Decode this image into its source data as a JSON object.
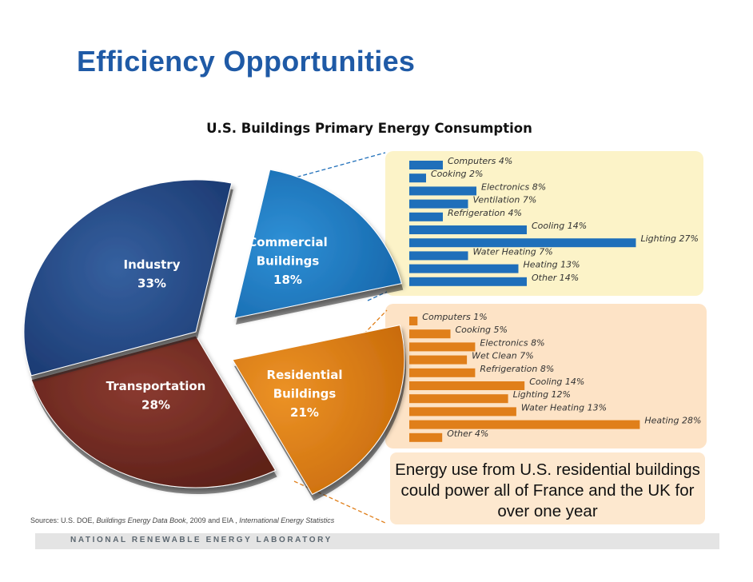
{
  "slide": {
    "title": "Efficiency Opportunities",
    "footer": "NATIONAL RENEWABLE ENERGY LABORATORY",
    "sources": {
      "prefix": "Sources:  U.S. DOE,",
      "book": "Buildings Energy Data Book",
      "mid": ", 2009  and  EIA ,",
      "stats": "International Energy Statistics"
    },
    "callout": "Energy use from U.S. residential buildings could power all of France and the UK for over one year"
  },
  "colors": {
    "title": "#1f5aa6",
    "industry": "#264a8c",
    "transportation": "#7a3028",
    "commercial": "#1a78c2",
    "residential": "#dd7e14",
    "commercial_bar": "#1f6fba",
    "residential_bar": "#e07f1a",
    "commercial_panel": "#fcf3c8",
    "residential_panel": "#fde3c6"
  },
  "chart_data": [
    {
      "type": "pie",
      "title": "U.S. Buildings Primary Energy Consumption",
      "slices": [
        {
          "name": "Industry",
          "line1": "Industry",
          "line2": "33%",
          "value": 33
        },
        {
          "name": "Commercial Buildings",
          "line1": "Commercial",
          "line1b": "Buildings",
          "line2": "18%",
          "value": 18
        },
        {
          "name": "Residential Buildings",
          "line1": "Residential",
          "line1b": "Buildings",
          "line2": "21%",
          "value": 21
        },
        {
          "name": "Transportation",
          "line1": "Transportation",
          "line2": "28%",
          "value": 28
        }
      ]
    },
    {
      "type": "bar",
      "title": "",
      "categories": [
        "Computers",
        "Cooking",
        "Electronics",
        "Ventilation",
        "Refrigeration",
        "Cooling",
        "Lighting",
        "Water Heating",
        "Heating",
        "Other"
      ],
      "labels": [
        "Computers 4%",
        "Cooking 2%",
        "Electronics 8%",
        "Ventilation 7%",
        "Refrigeration 4%",
        "Cooling 14%",
        "Lighting 27%",
        "Water Heating 7%",
        "Heating 13%",
        "Other 14%"
      ],
      "values": [
        4,
        2,
        8,
        7,
        4,
        14,
        27,
        7,
        13,
        14
      ]
    },
    {
      "type": "bar",
      "title": "",
      "categories": [
        "Computers",
        "Cooking",
        "Electronics",
        "Wet Clean",
        "Refrigeration",
        "Cooling",
        "Lighting",
        "Water Heating",
        "Heating",
        "Other"
      ],
      "labels": [
        "Computers 1%",
        "Cooking 5%",
        "Electronics 8%",
        "Wet Clean 7%",
        "Refrigeration 8%",
        "Cooling 14%",
        "Lighting 12%",
        "Water Heating 13%",
        "Heating 28%",
        "Other 4%"
      ],
      "values": [
        1,
        5,
        8,
        7,
        8,
        14,
        12,
        13,
        28,
        4
      ]
    }
  ]
}
